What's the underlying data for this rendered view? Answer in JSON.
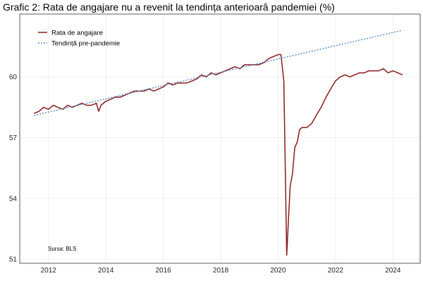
{
  "chart_data": {
    "type": "line",
    "title": "Grafic 2: Rata de angajare nu a revenit la tendința anterioară pandemiei (%)",
    "xlabel": "",
    "ylabel": "",
    "xlim": [
      2011.0,
      2024.95
    ],
    "ylim": [
      50.8,
      63.1
    ],
    "x_ticks": [
      2012,
      2014,
      2016,
      2018,
      2020,
      2022,
      2024
    ],
    "y_ticks": [
      51,
      54,
      57,
      60
    ],
    "grid": true,
    "legend_position": "top-left",
    "source": "Sursa: BLS",
    "series": [
      {
        "name": "Rata de angajare",
        "color": "#8b1a1a",
        "style": "solid",
        "points": [
          [
            2011.5,
            58.2
          ],
          [
            2011.67,
            58.3
          ],
          [
            2011.83,
            58.5
          ],
          [
            2012.0,
            58.4
          ],
          [
            2012.17,
            58.6
          ],
          [
            2012.33,
            58.5
          ],
          [
            2012.5,
            58.4
          ],
          [
            2012.67,
            58.6
          ],
          [
            2012.83,
            58.5
          ],
          [
            2013.0,
            58.6
          ],
          [
            2013.17,
            58.7
          ],
          [
            2013.33,
            58.6
          ],
          [
            2013.5,
            58.6
          ],
          [
            2013.67,
            58.7
          ],
          [
            2013.75,
            58.3
          ],
          [
            2013.83,
            58.6
          ],
          [
            2014.0,
            58.8
          ],
          [
            2014.17,
            58.9
          ],
          [
            2014.33,
            59.0
          ],
          [
            2014.5,
            59.0
          ],
          [
            2014.67,
            59.1
          ],
          [
            2014.83,
            59.2
          ],
          [
            2015.0,
            59.3
          ],
          [
            2015.17,
            59.3
          ],
          [
            2015.33,
            59.3
          ],
          [
            2015.5,
            59.4
          ],
          [
            2015.67,
            59.3
          ],
          [
            2015.83,
            59.4
          ],
          [
            2016.0,
            59.5
          ],
          [
            2016.17,
            59.7
          ],
          [
            2016.33,
            59.6
          ],
          [
            2016.5,
            59.7
          ],
          [
            2016.67,
            59.7
          ],
          [
            2016.83,
            59.7
          ],
          [
            2017.0,
            59.8
          ],
          [
            2017.17,
            59.9
          ],
          [
            2017.33,
            60.1
          ],
          [
            2017.5,
            60.0
          ],
          [
            2017.67,
            60.2
          ],
          [
            2017.83,
            60.1
          ],
          [
            2018.0,
            60.2
          ],
          [
            2018.17,
            60.3
          ],
          [
            2018.33,
            60.4
          ],
          [
            2018.5,
            60.5
          ],
          [
            2018.67,
            60.4
          ],
          [
            2018.83,
            60.6
          ],
          [
            2019.0,
            60.6
          ],
          [
            2019.17,
            60.6
          ],
          [
            2019.33,
            60.6
          ],
          [
            2019.5,
            60.7
          ],
          [
            2019.67,
            60.9
          ],
          [
            2019.83,
            61.0
          ],
          [
            2020.0,
            61.1
          ],
          [
            2020.1,
            61.1
          ],
          [
            2020.2,
            59.8
          ],
          [
            2020.3,
            51.2
          ],
          [
            2020.42,
            54.6
          ],
          [
            2020.5,
            55.2
          ],
          [
            2020.58,
            56.5
          ],
          [
            2020.67,
            56.8
          ],
          [
            2020.75,
            57.4
          ],
          [
            2020.83,
            57.5
          ],
          [
            2021.0,
            57.5
          ],
          [
            2021.17,
            57.7
          ],
          [
            2021.33,
            58.1
          ],
          [
            2021.5,
            58.5
          ],
          [
            2021.67,
            59.0
          ],
          [
            2021.83,
            59.4
          ],
          [
            2022.0,
            59.8
          ],
          [
            2022.17,
            60.0
          ],
          [
            2022.33,
            60.1
          ],
          [
            2022.5,
            60.0
          ],
          [
            2022.67,
            60.1
          ],
          [
            2022.83,
            60.2
          ],
          [
            2023.0,
            60.2
          ],
          [
            2023.17,
            60.3
          ],
          [
            2023.33,
            60.3
          ],
          [
            2023.5,
            60.3
          ],
          [
            2023.67,
            60.4
          ],
          [
            2023.83,
            60.2
          ],
          [
            2024.0,
            60.3
          ],
          [
            2024.17,
            60.2
          ],
          [
            2024.33,
            60.1
          ]
        ]
      },
      {
        "name": "Tendință pre-pandemie",
        "color": "#4a86c8",
        "style": "dotted",
        "points": [
          [
            2011.5,
            58.1
          ],
          [
            2024.33,
            62.3
          ]
        ]
      }
    ]
  }
}
